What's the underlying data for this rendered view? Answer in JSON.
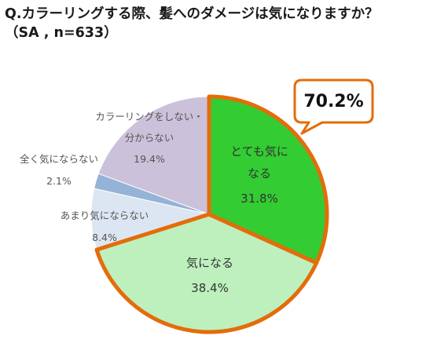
{
  "title": {
    "line1": "Q.カラーリングする際、髪へのダメージは気になりますか？",
    "line2": "（SA , n=633）"
  },
  "chart_data": {
    "type": "pie",
    "title": "Q.カラーリングする際、髪へのダメージは気になりますか？",
    "subtitle": "（SA , n=633）",
    "start_angle_deg": 0,
    "direction": "clockwise",
    "slices": [
      {
        "label_lines": [
          "とても気に",
          "なる"
        ],
        "value": 31.8,
        "value_label": "31.8%",
        "color": "#33cc33",
        "text_color": "#333333",
        "highlight": true
      },
      {
        "label_lines": [
          "気になる"
        ],
        "value": 38.4,
        "value_label": "38.4%",
        "color": "#bdf0bd",
        "text_color": "#333333",
        "highlight": true
      },
      {
        "label_lines": [
          "あまり気にならない"
        ],
        "value": 8.4,
        "value_label": "8.4%",
        "color": "#dce6f2",
        "text_color": "#555555",
        "highlight": false
      },
      {
        "label_lines": [
          "全く気にならない"
        ],
        "value": 2.1,
        "value_label": "2.1%",
        "color": "#95b3d7",
        "text_color": "#555555",
        "highlight": false
      },
      {
        "label_lines": [
          "カラーリングをしない・",
          "分からない"
        ],
        "value": 19.4,
        "value_label": "19.4%",
        "color": "#ccc1da",
        "text_color": "#555555",
        "highlight": false
      }
    ],
    "callout": {
      "text": "70.2%",
      "total_of": [
        "とても気になる",
        "気になる"
      ]
    },
    "colors": {
      "highlight_border": "#e46c0a",
      "edge": "#ffffff"
    }
  }
}
